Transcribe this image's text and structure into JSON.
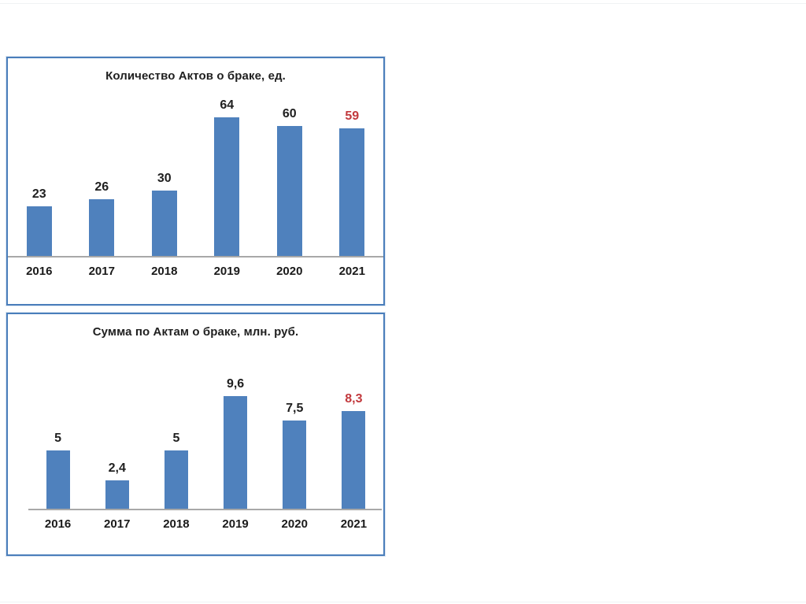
{
  "page": {
    "background": "#ffffff",
    "top_rule_color": "#f0f2f4",
    "bottom_rule_color": "#f0f2f4"
  },
  "chart_data": [
    {
      "type": "bar",
      "title": "Количество Актов о браке, ед.",
      "categories": [
        "2016",
        "2017",
        "2018",
        "2019",
        "2020",
        "2021"
      ],
      "values": [
        23,
        26,
        30,
        64,
        60,
        59
      ],
      "labels": [
        "23",
        "26",
        "30",
        "64",
        "60",
        "59"
      ],
      "label_colors": [
        "#1f1f1f",
        "#1f1f1f",
        "#1f1f1f",
        "#1f1f1f",
        "#1f1f1f",
        "#c2393d"
      ],
      "bar_color": "#4f81bd",
      "border_color": "#4a7ebb",
      "axis_color": "#a8a8a8",
      "xlabel": "",
      "ylabel": "",
      "ylim": [
        0,
        70
      ],
      "grid": false,
      "legend": "none"
    },
    {
      "type": "bar",
      "title": "Сумма по Актам о браке, млн. руб.",
      "categories": [
        "2016",
        "2017",
        "2018",
        "2019",
        "2020",
        "2021"
      ],
      "values": [
        5,
        2.4,
        5,
        9.6,
        7.5,
        8.3
      ],
      "labels": [
        "5",
        "2,4",
        "5",
        "9,6",
        "7,5",
        "8,3"
      ],
      "label_colors": [
        "#1f1f1f",
        "#1f1f1f",
        "#1f1f1f",
        "#1f1f1f",
        "#1f1f1f",
        "#c2393d"
      ],
      "bar_color": "#4f81bd",
      "border_color": "#4a7ebb",
      "axis_color": "#a8a8a8",
      "xlabel": "",
      "ylabel": "",
      "ylim": [
        0,
        10.5
      ],
      "grid": false,
      "legend": "none"
    }
  ]
}
